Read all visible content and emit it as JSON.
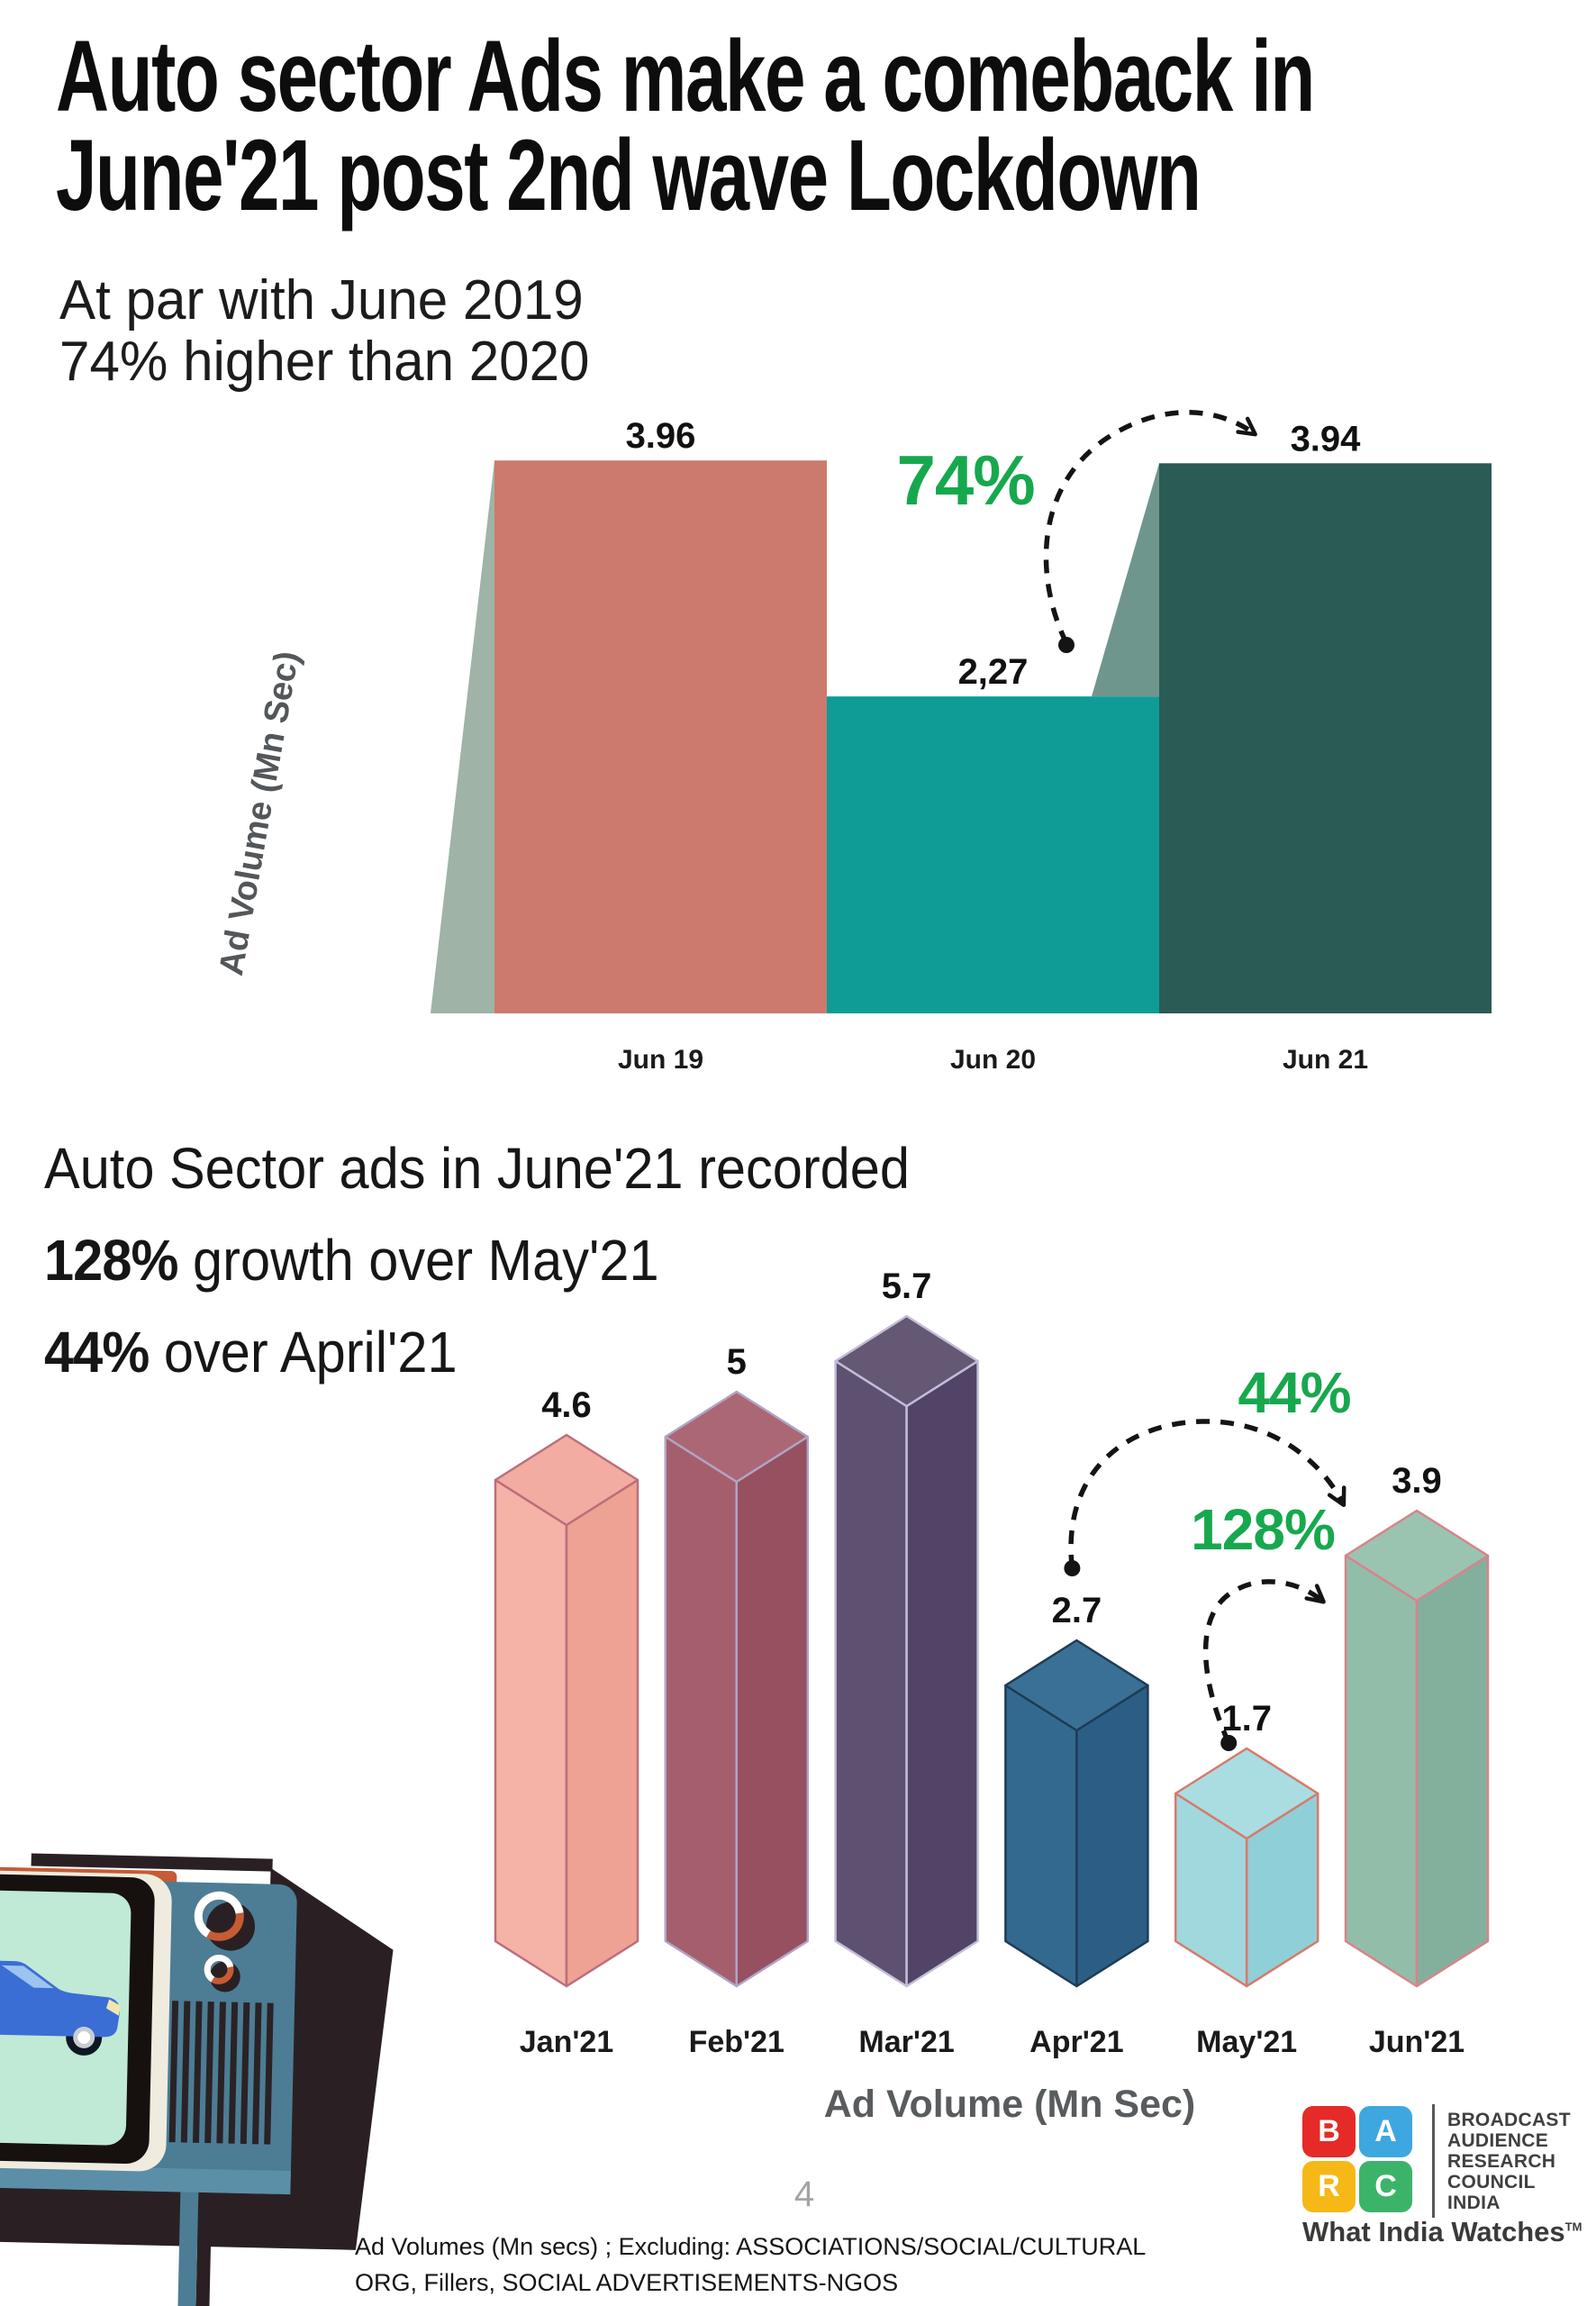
{
  "title": {
    "line1": "Auto sector Ads make a comeback in",
    "line2": "June'21 post 2nd wave Lockdown"
  },
  "subtitle": {
    "line1": "At par with June 2019",
    "line2": "74% higher than 2020"
  },
  "section_heading": {
    "line1": "Auto Sector ads in June'21 recorded",
    "stat1": "128%",
    "line2_rest": " growth over May'21",
    "stat2": "44%",
    "line3_rest": " over April'21"
  },
  "chart_data": [
    {
      "type": "bar",
      "categories": [
        "Jun 19",
        "Jun 20",
        "Jun 21"
      ],
      "values": [
        3.96,
        2.27,
        3.94
      ],
      "value_labels": [
        "3.96",
        "2,27",
        "3.94"
      ],
      "ylabel": "Ad Volume (Mn Sec)",
      "bar_colors": [
        "#CC7A6D",
        "#0F9B96",
        "#2B5B55"
      ],
      "axis_decor_colors": [
        "#9FB3A7",
        "#6F968D"
      ],
      "annotation": {
        "label": "74%",
        "color": "#17A84E",
        "from": "Jun 20",
        "to": "Jun 21"
      },
      "grid": false,
      "legend": "none"
    },
    {
      "type": "bar",
      "style": "3d-gem-columns",
      "categories": [
        "Jan'21",
        "Feb'21",
        "Mar'21",
        "Apr'21",
        "May'21",
        "Jun'21"
      ],
      "values": [
        4.6,
        5,
        5.7,
        2.7,
        1.7,
        3.9
      ],
      "value_labels": [
        "4.6",
        "5",
        "5.7",
        "2.7",
        "1.7",
        "3.9"
      ],
      "xlabel": "Ad Volume (Mn Sec)",
      "bar_styles": [
        {
          "left": "#F5B2A7",
          "right": "#EDA294",
          "top": "#F2ACA1",
          "outline": "#BC6E7B"
        },
        {
          "left": "#A55F6C",
          "right": "#96505F",
          "top": "#AB6874",
          "outline": "#B1A4C6"
        },
        {
          "left": "#5D5071",
          "right": "#514466",
          "top": "#645875",
          "outline": "#C4BDD8"
        },
        {
          "left": "#34698F",
          "right": "#2C5E85",
          "top": "#3B7096",
          "outline": "#1D3C57"
        },
        {
          "left": "#A0D8DE",
          "right": "#8FCFD7",
          "top": "#A9DDE2",
          "outline": "#D8796C"
        },
        {
          "left": "#92BEA9",
          "right": "#83B09C",
          "top": "#9AC4B0",
          "outline": "#D8838C"
        }
      ],
      "annotations": [
        {
          "label": "44%",
          "color": "#17A84E",
          "from": "Apr'21",
          "to": "Jun'21"
        },
        {
          "label": "128%",
          "color": "#17A84E",
          "from": "May'21",
          "to": "Jun'21"
        }
      ],
      "grid": false,
      "legend": "none"
    }
  ],
  "footnote": {
    "line1": "Ad Volumes (Mn secs) ; Excluding: ASSOCIATIONS/SOCIAL/CULTURAL",
    "line2": "ORG, Fillers, SOCIAL ADVERTISEMENTS-NGOS"
  },
  "page_number": "4",
  "logo": {
    "blocks": [
      {
        "letter": "B",
        "color": "#E52A28"
      },
      {
        "letter": "A",
        "color": "#3FA7E0"
      },
      {
        "letter": "R",
        "color": "#F6B817"
      },
      {
        "letter": "C",
        "color": "#3BB46A"
      }
    ],
    "org_lines": [
      "BROADCAST",
      "AUDIENCE",
      "RESEARCH",
      "COUNCIL",
      "INDIA"
    ],
    "tagline": "What India Watches",
    "trademark": "TM"
  }
}
